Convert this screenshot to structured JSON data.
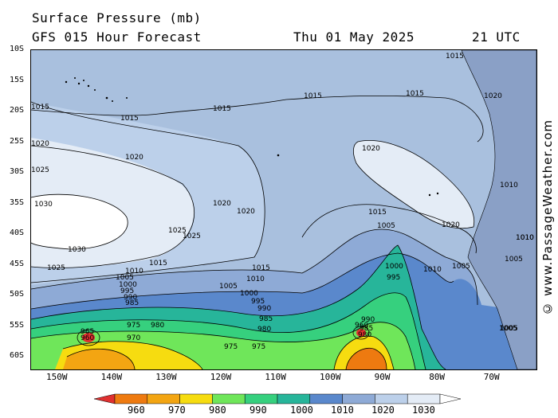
{
  "header": {
    "title": "Surface Pressure (mb)",
    "subtitle": "GFS 015 Hour Forecast",
    "date": "Thu 01 May 2025",
    "time": "21 UTC"
  },
  "latitude_labels": [
    "10S",
    "15S",
    "20S",
    "25S",
    "30S",
    "35S",
    "40S",
    "45S",
    "50S",
    "55S",
    "60S"
  ],
  "longitude_labels": [
    "150W",
    "140W",
    "130W",
    "120W",
    "110W",
    "100W",
    "90W",
    "80W",
    "70W"
  ],
  "isobar_labels": {
    "l1015a": "1015",
    "l1015b": "1015",
    "l1015c": "1015",
    "l1015d": "1015",
    "l1015e": "1015",
    "l1020a": "1020",
    "l1020b": "1020",
    "l1020c": "1020",
    "l1020d": "1020",
    "l1020e": "1020",
    "l1020f": "1020",
    "l1025a": "1025",
    "l1025b": "1025",
    "l1025c": "1025",
    "l1025d": "1025",
    "l1030a": "1030",
    "l1030b": "1030",
    "l1015f": "1015",
    "l1015g": "1015",
    "l1015h": "1015",
    "l1010a": "1010",
    "l1010b": "1010",
    "l1010c": "1010",
    "l1010d": "1010",
    "l1005a": "1005",
    "l1005b": "1005",
    "l1005c": "1005",
    "l1005d": "1005",
    "l1005e": "1005",
    "l1005f": "1005",
    "l1000a": "1000",
    "l1000b": "1000",
    "l1000c": "1000",
    "l995a": "995",
    "l995b": "995",
    "l995c": "995",
    "l990a": "990",
    "l990b": "990",
    "l990c": "990",
    "l985a": "985",
    "l985b": "985",
    "l985c": "985",
    "l980a": "980",
    "l980b": "980",
    "l980c": "980",
    "l975a": "975",
    "l975b": "975",
    "l975c": "975",
    "l970a": "970",
    "l965a": "965",
    "l960a": "960",
    "l960b": "960",
    "l1005g": "1005",
    "l1010e": "1010",
    "l1015i": "1015",
    "l1020g": "1020",
    "l1010f": "1010"
  },
  "colorbar": {
    "colors": [
      "#e03030",
      "#ee7a10",
      "#f3a512",
      "#f6dc10",
      "#6fe65a",
      "#36d07e",
      "#27b59a",
      "#5a88cc",
      "#8eaad6",
      "#bcd0ea",
      "#e4ecf6",
      "#ffffff"
    ],
    "labels": [
      "960",
      "970",
      "980",
      "990",
      "1000",
      "1010",
      "1020",
      "1030"
    ]
  },
  "credit": "© www.PassageWeather.com"
}
